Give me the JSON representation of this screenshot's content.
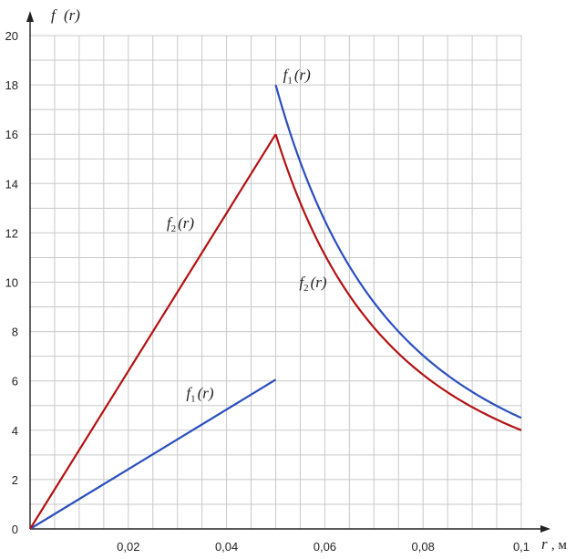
{
  "chart_data": {
    "type": "line",
    "title": "",
    "xlabel": {
      "symbol": "r",
      "unit": ", м"
    },
    "ylabel": {
      "symbol": "f",
      "arg": "(r)"
    },
    "xlim": [
      0,
      0.1
    ],
    "ylim": [
      0,
      20
    ],
    "grid": true,
    "x_ticks": [
      {
        "value": 0.02,
        "label": "0,02"
      },
      {
        "value": 0.04,
        "label": "0,04"
      },
      {
        "value": 0.06,
        "label": "0,06"
      },
      {
        "value": 0.08,
        "label": "0,08"
      },
      {
        "value": 0.1,
        "label": "0,1"
      }
    ],
    "y_ticks": [
      {
        "value": 0,
        "label": "0"
      },
      {
        "value": 2,
        "label": "2"
      },
      {
        "value": 4,
        "label": "4"
      },
      {
        "value": 6,
        "label": "6"
      },
      {
        "value": 8,
        "label": "8"
      },
      {
        "value": 10,
        "label": "10"
      },
      {
        "value": 12,
        "label": "12"
      },
      {
        "value": 14,
        "label": "14"
      },
      {
        "value": 16,
        "label": "16"
      },
      {
        "value": 18,
        "label": "18"
      },
      {
        "value": 20,
        "label": "20"
      }
    ],
    "series": [
      {
        "name": "f1(r)",
        "color": "#2b4fbf",
        "segments": [
          {
            "kind": "linear",
            "x": [
              0,
              0.05
            ],
            "y": [
              0,
              6.05
            ]
          },
          {
            "kind": "inverse-square",
            "x": [
              0.05,
              0.1
            ],
            "y": [
              18,
              4.5
            ]
          }
        ]
      },
      {
        "name": "f2(r)",
        "color": "#b31212",
        "segments": [
          {
            "kind": "linear",
            "x": [
              0,
              0.05
            ],
            "y": [
              0,
              16
            ]
          },
          {
            "kind": "inverse-square",
            "x": [
              0.05,
              0.1
            ],
            "y": [
              16,
              4
            ]
          }
        ]
      }
    ],
    "annotations": [
      {
        "series": "f1(r)",
        "text_main": "f",
        "text_sub": "1",
        "text_arg": "(r)",
        "x": 0.0515,
        "y": 18.2
      },
      {
        "series": "f2(r)",
        "text_main": "f",
        "text_sub": "2",
        "text_arg": "(r)",
        "x": 0.0278,
        "y": 12.2
      },
      {
        "series": "f2(r)",
        "text_main": "f",
        "text_sub": "2",
        "text_arg": "(r)",
        "x": 0.0548,
        "y": 9.8
      },
      {
        "series": "f1(r)",
        "text_main": "f",
        "text_sub": "1",
        "text_arg": "(r)",
        "x": 0.0318,
        "y": 5.3
      }
    ]
  }
}
